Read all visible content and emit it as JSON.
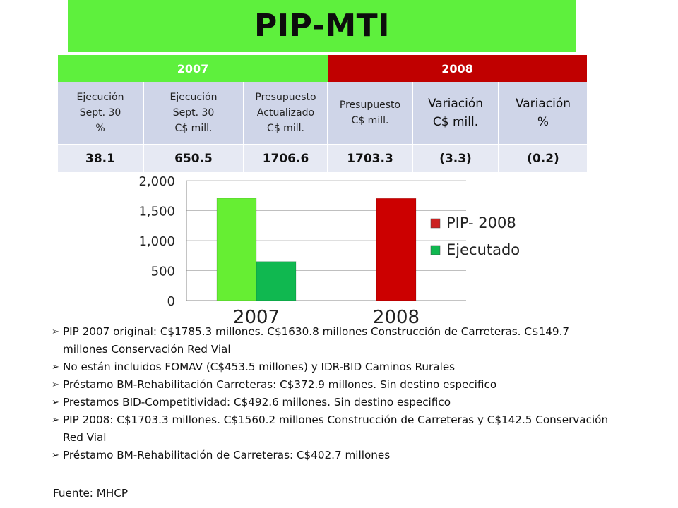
{
  "title": "PIP-MTI",
  "table": {
    "year_2007": "2007",
    "year_2008": "2008",
    "headers": [
      "Ejecución\nSept. 30\n%",
      "Ejecución\nSept. 30\nC$ mill.",
      "Presupuesto\nActualizado\nC$ mill.",
      "Presupuesto\nC$ mill.",
      "Variación\nC$ mill.",
      "Variación\n%"
    ],
    "values": [
      "38.1",
      "650.5",
      "1706.6",
      "1703.3",
      "(3.3)",
      "(0.2)"
    ]
  },
  "chart_data": {
    "type": "bar",
    "categories": [
      "2007",
      "2008"
    ],
    "series": [
      {
        "name": "PIP- 2008",
        "values": [
          1706.6,
          1703.3
        ],
        "colors": [
          "#66ee33",
          "#cc0000"
        ]
      },
      {
        "name": "Ejecutado",
        "values": [
          650.5,
          null
        ],
        "color": "#10b850"
      }
    ],
    "legend_entries": [
      {
        "label": "PIP- 2008",
        "color": "#cc2222"
      },
      {
        "label": "Ejecutado",
        "color": "#10b850"
      }
    ],
    "yticks": [
      "2,000",
      "1,500",
      "1,000",
      "500",
      "0"
    ],
    "ylim": [
      0,
      2000
    ],
    "legend_position": "right",
    "grid": true
  },
  "notes": [
    "PIP 2007 original: C$1785.3 millones.  C$1630.8 millones Construcción de Carreteras. C$149.7 millones Conservación Red Vial",
    "No están incluidos FOMAV (C$453.5 millones) y IDR-BID Caminos Rurales",
    "Préstamo BM-Rehabilitación Carreteras: C$372.9 millones. Sin destino especifico",
    "Prestamos BID-Competitividad: C$492.6 millones. Sin destino especifico",
    "PIP 2008: C$1703.3 millones. C$1560.2 millones Construcción de Carreteras y C$142.5 Conservación Red Vial",
    "Préstamo BM-Rehabilitación de Carreteras: C$402.7 millones"
  ],
  "source": "Fuente: MHCP"
}
